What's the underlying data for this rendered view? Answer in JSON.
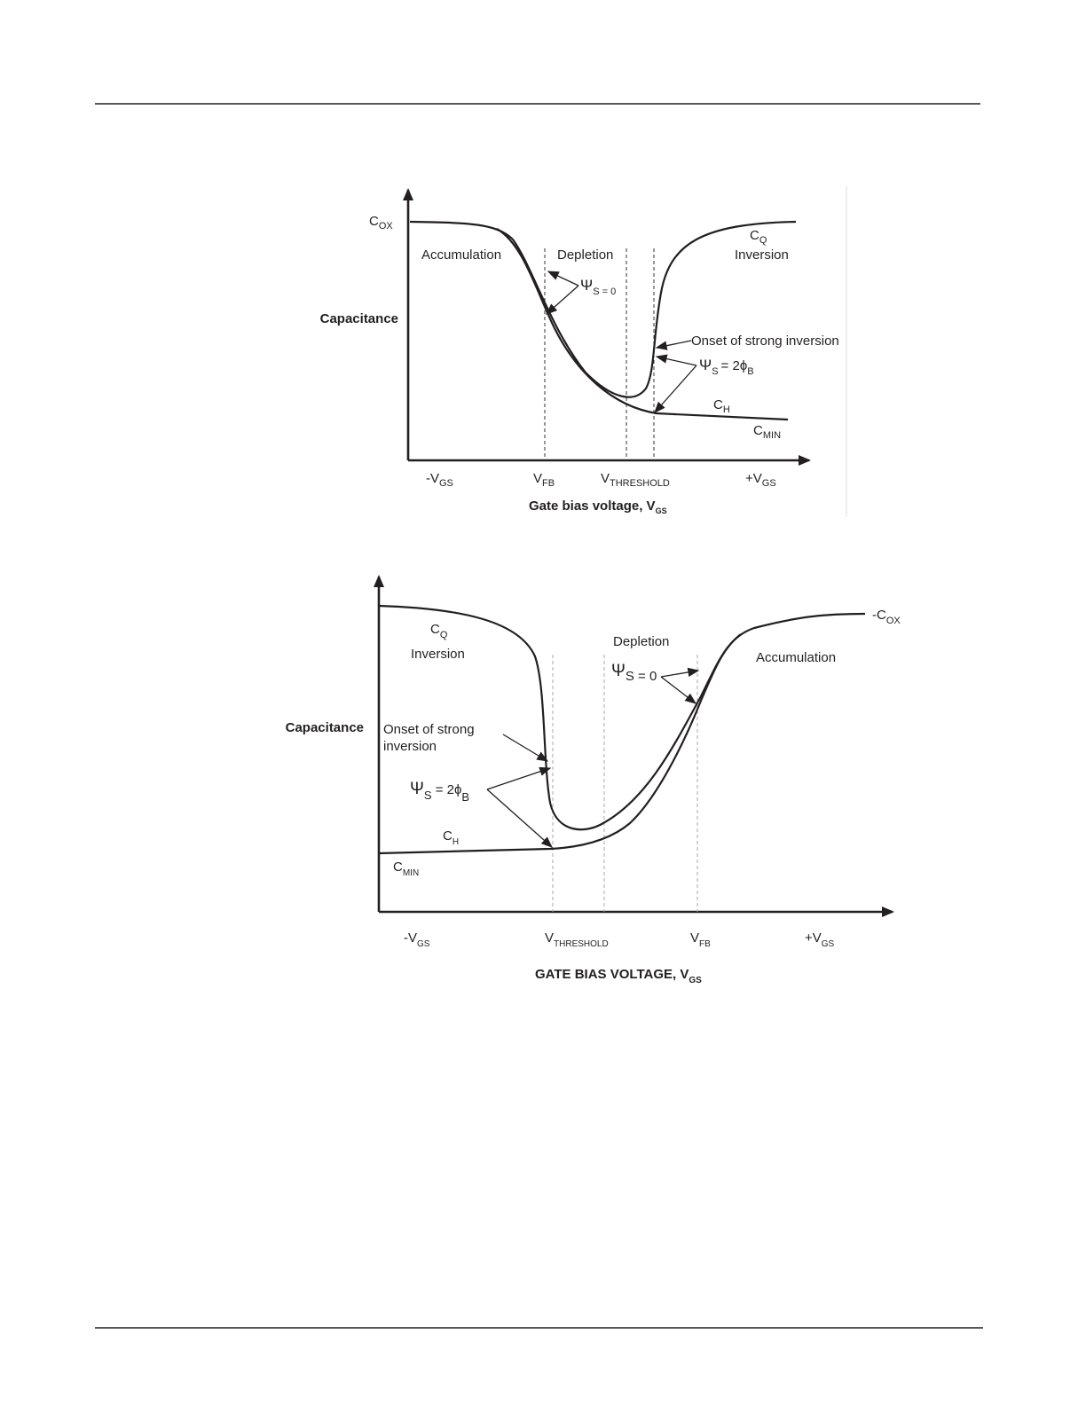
{
  "diagram1": {
    "y_axis_label": "Capacitance",
    "cox": {
      "main": "C",
      "sub": "OX"
    },
    "accumulation": "Accumulation",
    "depletion": "Depletion",
    "cq": {
      "main": "C",
      "sub": "Q"
    },
    "inversion": "Inversion",
    "psi_s0": {
      "main": "Ψ",
      "sub": "S = 0"
    },
    "onset": "Onset of strong inversion",
    "psi_2phi": {
      "main": "Ψ",
      "sub": "S",
      "eq": "= 2ϕ",
      "sub2": "B"
    },
    "ch": {
      "main": "C",
      "sub": "H"
    },
    "cmin": {
      "main": "C",
      "sub": "MIN"
    },
    "x_ticks": [
      {
        "main": "-V",
        "sub": "GS"
      },
      {
        "main": "V",
        "sub": "FB"
      },
      {
        "main": "V",
        "sub": "THRESHOLD"
      },
      {
        "main": "+V",
        "sub": "GS"
      }
    ],
    "x_axis_label": {
      "main": "Gate bias voltage, V",
      "sub": "GS"
    }
  },
  "diagram2": {
    "y_axis_label": "Capacitance",
    "cox": {
      "main": "-C",
      "sub": "OX"
    },
    "cq": {
      "main": "C",
      "sub": "Q"
    },
    "inversion": "Inversion",
    "depletion": "Depletion",
    "accumulation": "Accumulation",
    "psi_s0": {
      "main": "Ψ",
      "sub": "S = 0"
    },
    "onset": [
      "Onset of strong",
      "inversion"
    ],
    "psi_2phi": {
      "main": "Ψ",
      "sub": "S",
      "eq": " = 2ϕ",
      "sub2": "B"
    },
    "ch": {
      "main": "C",
      "sub": "H"
    },
    "cmin": {
      "main": "C",
      "sub": "MIN"
    },
    "x_ticks": [
      {
        "main": "-V",
        "sub": "GS"
      },
      {
        "main": "V",
        "sub": "THRESHOLD"
      },
      {
        "main": "V",
        "sub": "FB"
      },
      {
        "main": "+V",
        "sub": "GS"
      }
    ],
    "x_axis_label": {
      "main": "GATE BIAS VOLTAGE, V",
      "sub": "GS"
    }
  }
}
